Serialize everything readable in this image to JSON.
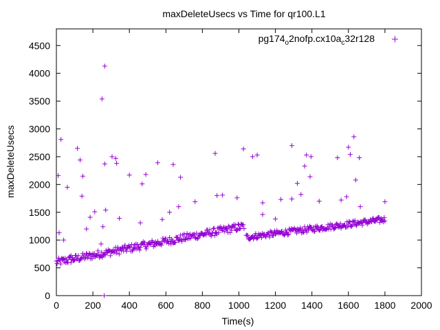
{
  "chart_data": {
    "type": "scatter",
    "title": "maxDeleteUsecs vs Time for qr100.L1",
    "xlabel": "Time(s)",
    "ylabel": "maxDeleteUsecs",
    "xlim": [
      0,
      2000
    ],
    "ylim": [
      0,
      4800
    ],
    "xticks": [
      0,
      200,
      400,
      600,
      800,
      1000,
      1200,
      1400,
      1600,
      1800,
      2000
    ],
    "yticks": [
      0,
      500,
      1000,
      1500,
      2000,
      2500,
      3000,
      3500,
      4000,
      4500
    ],
    "grid": false,
    "legend_position": "top-right",
    "marker": "+",
    "series": [
      {
        "name": "pg174_o2nofp.cx10a_c32r128",
        "name_parts": {
          "a": "pg174",
          "b": "o",
          "c": "2nofp.cx10a",
          "d": "c",
          "e": "32r128"
        },
        "color": "#9400d3",
        "trend": [
          {
            "x_start": 0,
            "x_end": 1030,
            "y_start": 600,
            "y_end": 1250,
            "spread": 70
          },
          {
            "x_start": 1040,
            "x_end": 1800,
            "y_start": 1050,
            "y_end": 1370,
            "spread": 55
          }
        ],
        "outliers": [
          [
            10,
            2160
          ],
          [
            15,
            1130
          ],
          [
            25,
            2810
          ],
          [
            40,
            1000
          ],
          [
            60,
            1950
          ],
          [
            80,
            720
          ],
          [
            115,
            2650
          ],
          [
            130,
            2440
          ],
          [
            140,
            1790
          ],
          [
            145,
            2150
          ],
          [
            165,
            1200
          ],
          [
            185,
            1410
          ],
          [
            210,
            1510
          ],
          [
            245,
            930
          ],
          [
            250,
            3540
          ],
          [
            255,
            1240
          ],
          [
            262,
            0
          ],
          [
            265,
            4130
          ],
          [
            265,
            2370
          ],
          [
            270,
            1540
          ],
          [
            305,
            2500
          ],
          [
            325,
            2470
          ],
          [
            330,
            2380
          ],
          [
            345,
            1390
          ],
          [
            400,
            2170
          ],
          [
            460,
            1310
          ],
          [
            470,
            2010
          ],
          [
            490,
            2180
          ],
          [
            555,
            2390
          ],
          [
            580,
            1370
          ],
          [
            620,
            1500
          ],
          [
            640,
            2360
          ],
          [
            670,
            1600
          ],
          [
            680,
            2130
          ],
          [
            760,
            1690
          ],
          [
            870,
            2560
          ],
          [
            880,
            1800
          ],
          [
            910,
            1810
          ],
          [
            990,
            1760
          ],
          [
            1025,
            2640
          ],
          [
            1075,
            2500
          ],
          [
            1100,
            2530
          ],
          [
            1130,
            1670
          ],
          [
            1130,
            1460
          ],
          [
            1200,
            1380
          ],
          [
            1230,
            1730
          ],
          [
            1290,
            1740
          ],
          [
            1290,
            2700
          ],
          [
            1320,
            2020
          ],
          [
            1340,
            1820
          ],
          [
            1360,
            2330
          ],
          [
            1370,
            2530
          ],
          [
            1390,
            2140
          ],
          [
            1395,
            2500
          ],
          [
            1440,
            1700
          ],
          [
            1540,
            2480
          ],
          [
            1560,
            1720
          ],
          [
            1590,
            1780
          ],
          [
            1600,
            2670
          ],
          [
            1610,
            2540
          ],
          [
            1630,
            2860
          ],
          [
            1640,
            2080
          ],
          [
            1660,
            2480
          ],
          [
            1665,
            1600
          ],
          [
            1800,
            1690
          ]
        ]
      }
    ]
  }
}
